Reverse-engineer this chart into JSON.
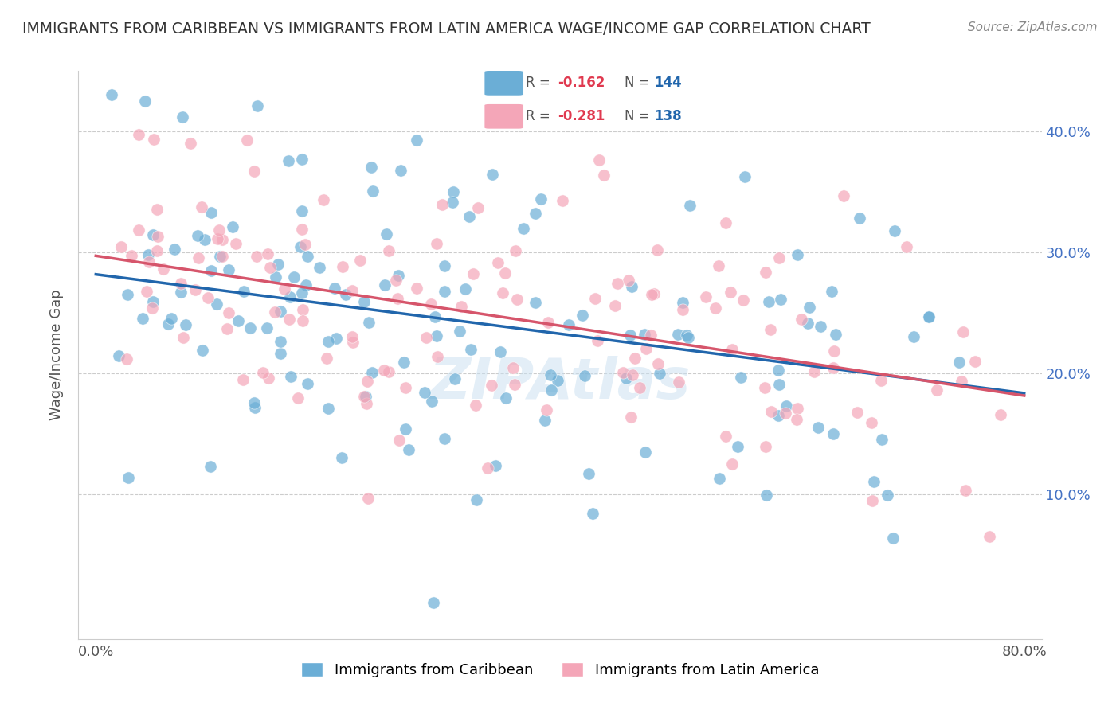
{
  "title": "IMMIGRANTS FROM CARIBBEAN VS IMMIGRANTS FROM LATIN AMERICA WAGE/INCOME GAP CORRELATION CHART",
  "source": "Source: ZipAtlas.com",
  "ylabel": "Wage/Income Gap",
  "xlim": [
    0.0,
    0.8
  ],
  "ylim": [
    -0.02,
    0.45
  ],
  "blue_R": -0.162,
  "blue_N": 144,
  "pink_R": -0.281,
  "pink_N": 138,
  "blue_color": "#6baed6",
  "pink_color": "#f4a6b8",
  "blue_line_color": "#2166ac",
  "pink_line_color": "#d6556b",
  "background_color": "#ffffff",
  "grid_color": "#cccccc",
  "legend_R_color": "#e0394f",
  "legend_N_color": "#2166ac"
}
